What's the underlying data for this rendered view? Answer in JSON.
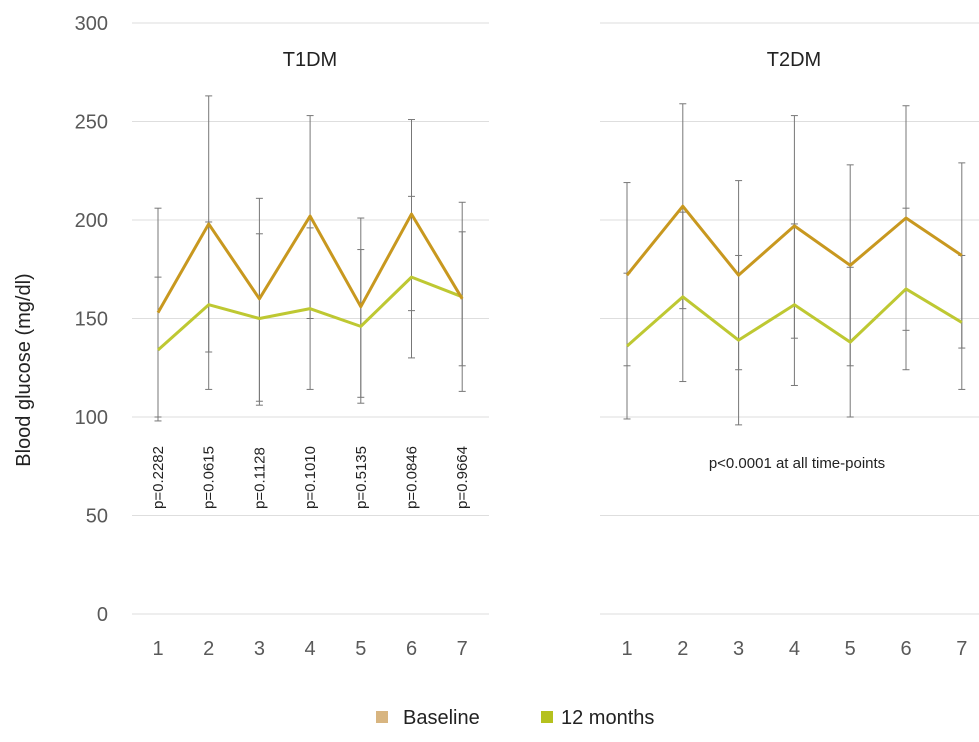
{
  "y_axis": {
    "label": "Blood glucose (mg/dl)",
    "ticks": [
      "0",
      "50",
      "100",
      "150",
      "200",
      "250",
      "300"
    ]
  },
  "legend": [
    {
      "label": "Baseline",
      "color": "#d8b580"
    },
    {
      "label": "12 months",
      "color": "#b5c11e"
    }
  ],
  "chart_data": [
    {
      "type": "line",
      "title": "T1DM",
      "x": [
        1,
        2,
        3,
        4,
        5,
        6,
        7
      ],
      "xticks": [
        "1",
        "2",
        "3",
        "4",
        "5",
        "6",
        "7"
      ],
      "ylim": [
        0,
        300
      ],
      "yticks": [
        0,
        50,
        100,
        150,
        200,
        250,
        300
      ],
      "grid": true,
      "series": [
        {
          "name": "Baseline",
          "color": "#c8981f",
          "values": [
            153,
            198,
            160,
            202,
            156,
            203,
            160
          ],
          "error_low": [
            98,
            133,
            108,
            150,
            110,
            154,
            126
          ],
          "error_high": [
            206,
            263,
            211,
            253,
            201,
            251,
            209
          ]
        },
        {
          "name": "12 months",
          "color": "#bec832",
          "values": [
            134,
            157,
            150,
            155,
            146,
            171,
            161
          ],
          "error_low": [
            100,
            114,
            106,
            114,
            107,
            130,
            113
          ],
          "error_high": [
            171,
            199,
            193,
            196,
            185,
            212,
            194
          ]
        }
      ],
      "annotations": [
        "p=0.2282",
        "p=0.0615",
        "p=0.1128",
        "p=0.1010",
        "p=0.5135",
        "p=0.0846",
        "p=0.9664"
      ]
    },
    {
      "type": "line",
      "title": "T2DM",
      "x": [
        1,
        2,
        3,
        4,
        5,
        6,
        7
      ],
      "xticks": [
        "1",
        "2",
        "3",
        "4",
        "5",
        "6",
        "7"
      ],
      "ylim": [
        0,
        300
      ],
      "yticks": [
        0,
        50,
        100,
        150,
        200,
        250,
        300
      ],
      "grid": true,
      "series": [
        {
          "name": "Baseline",
          "color": "#c8981f",
          "values": [
            172,
            207,
            172,
            197,
            177,
            201,
            182
          ],
          "error_low": [
            126,
            155,
            124,
            140,
            126,
            144,
            135
          ],
          "error_high": [
            219,
            259,
            220,
            253,
            228,
            258,
            229
          ]
        },
        {
          "name": "12 months",
          "color": "#bec832",
          "values": [
            136,
            161,
            139,
            157,
            138,
            165,
            148
          ],
          "error_low": [
            99,
            118,
            96,
            116,
            100,
            124,
            114
          ],
          "error_high": [
            173,
            204,
            182,
            198,
            176,
            206,
            182
          ]
        }
      ],
      "annotation": "p<0.0001 at all time-points"
    }
  ]
}
